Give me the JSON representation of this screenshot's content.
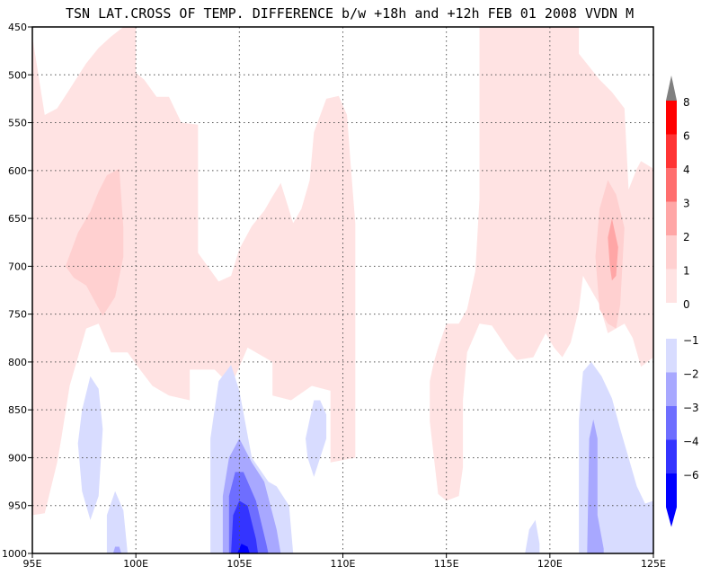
{
  "chart_data": {
    "type": "contour",
    "title": "TSN LAT.CROSS OF TEMP. DIFFERENCE b/w +18h and +12h FEB 01 2008 VVDN M",
    "xlabel": "",
    "ylabel": "",
    "x_ticks": [
      "95E",
      "100E",
      "105E",
      "110E",
      "115E",
      "120E",
      "125E"
    ],
    "x_tick_values": [
      95,
      100,
      105,
      110,
      115,
      120,
      125
    ],
    "y_ticks": [
      "450",
      "500",
      "550",
      "600",
      "650",
      "700",
      "750",
      "800",
      "850",
      "900",
      "950",
      "1000"
    ],
    "y_tick_values": [
      450,
      500,
      550,
      600,
      650,
      700,
      750,
      800,
      850,
      900,
      950,
      1000
    ],
    "xlim": [
      95,
      125
    ],
    "ylim": [
      450,
      1000
    ],
    "y_inverted": true,
    "grid": true,
    "legend_placement": "right",
    "legend_positive": [
      {
        "label": "8",
        "color": "#ff0000"
      },
      {
        "label": "6",
        "color": "#ff3434"
      },
      {
        "label": "4",
        "color": "#ff6e6e"
      },
      {
        "label": "3",
        "color": "#ffa6a6"
      },
      {
        "label": "2",
        "color": "#ffd0d0"
      },
      {
        "label": "1",
        "color": "#ffe3e3"
      },
      {
        "label": "0",
        "color": "#ffffff"
      }
    ],
    "legend_negative": [
      {
        "label": "−1",
        "color": "#d8dcff"
      },
      {
        "label": "−2",
        "color": "#a8a8ff"
      },
      {
        "label": "−3",
        "color": "#6e6eff"
      },
      {
        "label": "−4",
        "color": "#3434ff"
      },
      {
        "label": "−6",
        "color": "#0000ff"
      }
    ],
    "legend_over_color": "#808080",
    "legend_under_color": "#0000ff",
    "regions": [
      {
        "level": 0.5,
        "color": "#ffe3e3",
        "points": [
          [
            95,
            460
          ],
          [
            95.6,
            542
          ],
          [
            96.2,
            535
          ],
          [
            96.8,
            515
          ],
          [
            97.6,
            488
          ],
          [
            98.2,
            472
          ],
          [
            98.8,
            460
          ],
          [
            99.4,
            450
          ],
          [
            100,
            450
          ],
          [
            100,
            498
          ],
          [
            100.4,
            505
          ],
          [
            101,
            523
          ],
          [
            101.6,
            523
          ],
          [
            102.2,
            550
          ],
          [
            103,
            552
          ],
          [
            103,
            686
          ],
          [
            104,
            716
          ],
          [
            104.6,
            710
          ],
          [
            105,
            682
          ],
          [
            105.6,
            658
          ],
          [
            106.2,
            642
          ],
          [
            106.6,
            627
          ],
          [
            107,
            613
          ],
          [
            107.6,
            655
          ],
          [
            108,
            640
          ],
          [
            108.4,
            610
          ],
          [
            108.6,
            560
          ],
          [
            109.2,
            525
          ],
          [
            109.8,
            522
          ],
          [
            110.2,
            542
          ],
          [
            110.4,
            600
          ],
          [
            110.6,
            655
          ],
          [
            110.6,
            900
          ],
          [
            109.4,
            905
          ],
          [
            109.4,
            830
          ],
          [
            108.5,
            825
          ],
          [
            107.5,
            840
          ],
          [
            106.6,
            835
          ],
          [
            106.6,
            800
          ],
          [
            105.4,
            785
          ],
          [
            104.6,
            825
          ],
          [
            103.8,
            808
          ],
          [
            102.6,
            808
          ],
          [
            102.6,
            840
          ],
          [
            101.6,
            835
          ],
          [
            100.8,
            825
          ],
          [
            100.2,
            808
          ],
          [
            99.6,
            790
          ],
          [
            98.8,
            790
          ],
          [
            98.2,
            760
          ],
          [
            97.6,
            765
          ],
          [
            97.2,
            795
          ],
          [
            96.8,
            825
          ],
          [
            96.4,
            880
          ],
          [
            96.2,
            905
          ],
          [
            95.6,
            958
          ],
          [
            95,
            960
          ]
        ]
      },
      {
        "level": 0.5,
        "color": "#ffe3e3",
        "points": [
          [
            114.6,
            785
          ],
          [
            115,
            760
          ],
          [
            115.6,
            760
          ],
          [
            116,
            745
          ],
          [
            116.4,
            705
          ],
          [
            116.6,
            630
          ],
          [
            116.6,
            450
          ],
          [
            121.4,
            450
          ],
          [
            121.4,
            478
          ],
          [
            122.4,
            505
          ],
          [
            123,
            518
          ],
          [
            123.6,
            535
          ],
          [
            123.8,
            620
          ],
          [
            124.2,
            598
          ],
          [
            124.4,
            590
          ],
          [
            125,
            598
          ],
          [
            125,
            795
          ],
          [
            124.4,
            805
          ],
          [
            124,
            775
          ],
          [
            123.6,
            760
          ],
          [
            122.8,
            770
          ],
          [
            122.4,
            740
          ],
          [
            122,
            725
          ],
          [
            121.6,
            710
          ],
          [
            121.4,
            745
          ],
          [
            121,
            780
          ],
          [
            120.6,
            795
          ],
          [
            120.2,
            785
          ],
          [
            119.8,
            770
          ],
          [
            119.2,
            795
          ],
          [
            118.4,
            798
          ],
          [
            118,
            788
          ],
          [
            117.6,
            775
          ],
          [
            117.2,
            762
          ],
          [
            116.6,
            760
          ],
          [
            116,
            790
          ],
          [
            115.8,
            840
          ],
          [
            115.8,
            910
          ],
          [
            115.6,
            940
          ],
          [
            115,
            945
          ],
          [
            114.6,
            938
          ],
          [
            114.4,
            900
          ],
          [
            114.2,
            862
          ],
          [
            114.2,
            820
          ],
          [
            114.4,
            800
          ]
        ]
      },
      {
        "level": 1.5,
        "color": "#ffd0d0",
        "points": [
          [
            96.6,
            700
          ],
          [
            97.2,
            665
          ],
          [
            97.8,
            643
          ],
          [
            98.2,
            622
          ],
          [
            98.6,
            605
          ],
          [
            99.2,
            598
          ],
          [
            99.4,
            660
          ],
          [
            99.4,
            690
          ],
          [
            99,
            732
          ],
          [
            98.4,
            752
          ],
          [
            97.6,
            720
          ],
          [
            97,
            712
          ]
        ]
      },
      {
        "level": 1.5,
        "color": "#ffd0d0",
        "points": [
          [
            122.4,
            745
          ],
          [
            122.2,
            690
          ],
          [
            122.4,
            640
          ],
          [
            122.8,
            610
          ],
          [
            123.2,
            625
          ],
          [
            123.6,
            660
          ],
          [
            123.4,
            740
          ],
          [
            123.2,
            765
          ],
          [
            122.8,
            760
          ]
        ]
      },
      {
        "level": 2.5,
        "color": "#ffa6a6",
        "points": [
          [
            122.9,
            700
          ],
          [
            122.8,
            670
          ],
          [
            123,
            650
          ],
          [
            123.3,
            680
          ],
          [
            123.2,
            710
          ],
          [
            123,
            715
          ]
        ]
      },
      {
        "level": -0.5,
        "color": "#d8dcff",
        "points": [
          [
            97.4,
            850
          ],
          [
            97.8,
            815
          ],
          [
            98.2,
            828
          ],
          [
            98.4,
            870
          ],
          [
            98.2,
            940
          ],
          [
            97.8,
            965
          ],
          [
            97.4,
            935
          ],
          [
            97.2,
            885
          ]
        ]
      },
      {
        "level": -0.5,
        "color": "#d8dcff",
        "points": [
          [
            98.6,
            1000
          ],
          [
            98.6,
            960
          ],
          [
            99,
            935
          ],
          [
            99.4,
            955
          ],
          [
            99.6,
            1000
          ]
        ]
      },
      {
        "level": -0.5,
        "color": "#d8dcff",
        "points": [
          [
            103.6,
            1000
          ],
          [
            103.6,
            880
          ],
          [
            104,
            820
          ],
          [
            104.6,
            803
          ],
          [
            105,
            830
          ],
          [
            105.6,
            900
          ],
          [
            106.4,
            925
          ],
          [
            106.8,
            930
          ],
          [
            107.4,
            950
          ],
          [
            107.6,
            1000
          ]
        ]
      },
      {
        "level": -0.5,
        "color": "#d8dcff",
        "points": [
          [
            108.4,
            860
          ],
          [
            108.6,
            840
          ],
          [
            108.9,
            840
          ],
          [
            109.2,
            855
          ],
          [
            109.2,
            880
          ],
          [
            108.9,
            900
          ],
          [
            108.6,
            920
          ],
          [
            108.3,
            900
          ],
          [
            108.2,
            880
          ]
        ]
      },
      {
        "level": -0.5,
        "color": "#d8dcff",
        "points": [
          [
            118.8,
            1000
          ],
          [
            119,
            975
          ],
          [
            119.3,
            965
          ],
          [
            119.5,
            990
          ],
          [
            119.5,
            1000
          ]
        ]
      },
      {
        "level": -0.5,
        "color": "#d8dcff",
        "points": [
          [
            121.4,
            1000
          ],
          [
            121.4,
            860
          ],
          [
            121.6,
            810
          ],
          [
            122,
            800
          ],
          [
            122.5,
            815
          ],
          [
            123,
            838
          ],
          [
            123.4,
            870
          ],
          [
            123.8,
            900
          ],
          [
            124.2,
            930
          ],
          [
            124.6,
            948
          ],
          [
            125,
            945
          ],
          [
            125,
            1000
          ]
        ]
      },
      {
        "level": -1.5,
        "color": "#a8a8ff",
        "points": [
          [
            104.2,
            1000
          ],
          [
            104.2,
            940
          ],
          [
            104.5,
            900
          ],
          [
            105,
            880
          ],
          [
            105.6,
            905
          ],
          [
            106.2,
            925
          ],
          [
            106.8,
            975
          ],
          [
            107,
            1000
          ]
        ]
      },
      {
        "level": -1.5,
        "color": "#a8a8ff",
        "points": [
          [
            121.8,
            1000
          ],
          [
            121.9,
            880
          ],
          [
            122.1,
            860
          ],
          [
            122.3,
            880
          ],
          [
            122.3,
            960
          ],
          [
            122.6,
            995
          ],
          [
            122.6,
            1000
          ]
        ]
      },
      {
        "level": -1.5,
        "color": "#a8a8ff",
        "points": [
          [
            98.9,
            1000
          ],
          [
            99,
            993
          ],
          [
            99.2,
            993
          ],
          [
            99.3,
            1000
          ]
        ]
      },
      {
        "level": -2.5,
        "color": "#6e6eff",
        "points": [
          [
            104.5,
            1000
          ],
          [
            104.5,
            940
          ],
          [
            104.8,
            915
          ],
          [
            105.2,
            915
          ],
          [
            105.8,
            945
          ],
          [
            106.3,
            990
          ],
          [
            106.4,
            1000
          ]
        ]
      },
      {
        "level": -3.5,
        "color": "#3434ff",
        "points": [
          [
            104.6,
            1000
          ],
          [
            104.7,
            960
          ],
          [
            105,
            945
          ],
          [
            105.4,
            950
          ],
          [
            105.8,
            985
          ],
          [
            105.9,
            1000
          ]
        ]
      },
      {
        "level": -4.5,
        "color": "#0000ff",
        "points": [
          [
            104.9,
            1000
          ],
          [
            105.1,
            990
          ],
          [
            105.4,
            993
          ],
          [
            105.5,
            1000
          ]
        ]
      }
    ]
  }
}
